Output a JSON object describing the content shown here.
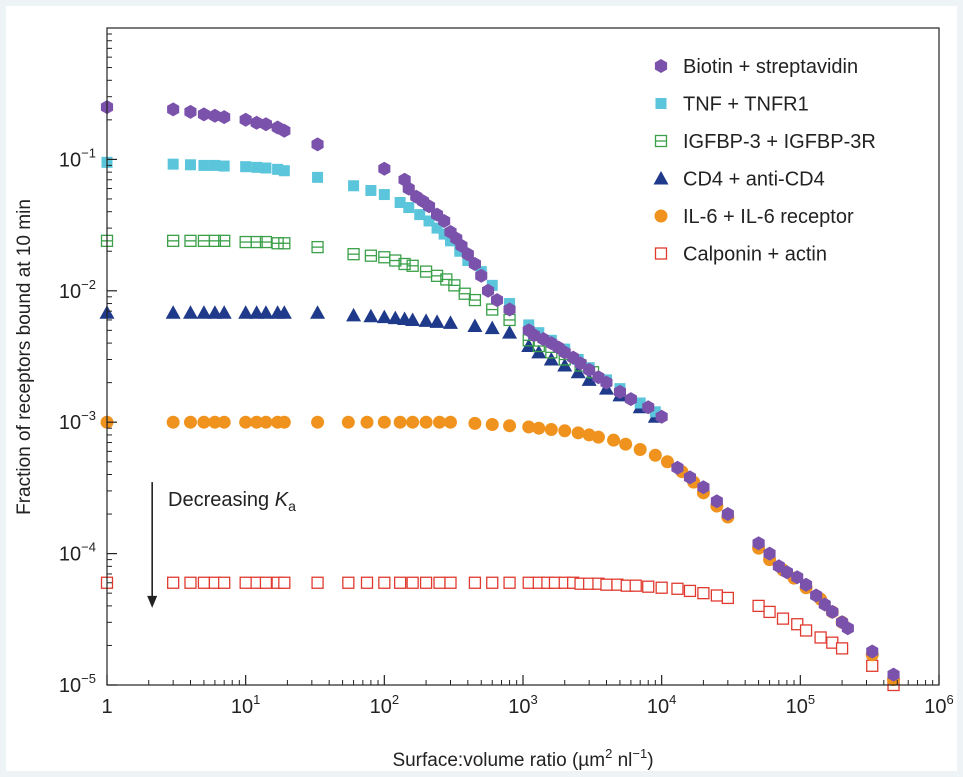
{
  "chart_data": {
    "type": "scatter",
    "xscale": "log",
    "yscale": "log",
    "xlim": [
      1,
      1000000
    ],
    "ylim": [
      1e-05,
      1
    ],
    "xlabel": {
      "main": "Surface:volume ratio (µm",
      "sup1": "2",
      "mid": " nl",
      "sup2": "−1",
      "end": ")"
    },
    "ylabel": "Fraction of receptors bound at 10 min",
    "x_ticks": [
      {
        "value": 1,
        "base": "1",
        "exp": ""
      },
      {
        "value": 10,
        "base": "10",
        "exp": "1"
      },
      {
        "value": 100,
        "base": "10",
        "exp": "2"
      },
      {
        "value": 1000,
        "base": "10",
        "exp": "3"
      },
      {
        "value": 10000,
        "base": "10",
        "exp": "4"
      },
      {
        "value": 100000,
        "base": "10",
        "exp": "5"
      },
      {
        "value": 1000000,
        "base": "10",
        "exp": "6"
      }
    ],
    "y_ticks": [
      {
        "value": 0.1,
        "base": "10",
        "exp": "−1"
      },
      {
        "value": 0.01,
        "base": "10",
        "exp": "−2"
      },
      {
        "value": 0.001,
        "base": "10",
        "exp": "−3"
      },
      {
        "value": 0.0001,
        "base": "10",
        "exp": "−4"
      },
      {
        "value": 1e-05,
        "base": "10",
        "exp": "−5"
      }
    ],
    "annotation": {
      "text": "Decreasing ",
      "italic": "K",
      "sub": "a",
      "arrow_from": 0.00035,
      "arrow_to": 4e-05,
      "x": 2.5
    },
    "legend_position": "top-right",
    "series": [
      {
        "name": "Biotin + streptavidin",
        "marker": "hexagon",
        "color": "#7b52ab",
        "points": [
          [
            1,
            0.25
          ],
          [
            3,
            0.24
          ],
          [
            4,
            0.23
          ],
          [
            5,
            0.22
          ],
          [
            6,
            0.215
          ],
          [
            7,
            0.21
          ],
          [
            10,
            0.2
          ],
          [
            12,
            0.19
          ],
          [
            14,
            0.185
          ],
          [
            17,
            0.175
          ],
          [
            19,
            0.165
          ],
          [
            33,
            0.13
          ],
          [
            100,
            0.085
          ],
          [
            140,
            0.07
          ],
          [
            150,
            0.06
          ],
          [
            170,
            0.052
          ],
          [
            190,
            0.048
          ],
          [
            210,
            0.044
          ],
          [
            240,
            0.038
          ],
          [
            270,
            0.034
          ],
          [
            300,
            0.028
          ],
          [
            330,
            0.025
          ],
          [
            360,
            0.022
          ],
          [
            400,
            0.019
          ],
          [
            450,
            0.016
          ],
          [
            500,
            0.013
          ],
          [
            560,
            0.01
          ],
          [
            650,
            0.0085
          ],
          [
            800,
            0.0072
          ],
          [
            1100,
            0.005
          ],
          [
            1200,
            0.0046
          ],
          [
            1400,
            0.0043
          ],
          [
            1600,
            0.004
          ],
          [
            1800,
            0.0037
          ],
          [
            2000,
            0.0034
          ],
          [
            2300,
            0.0031
          ],
          [
            2600,
            0.0028
          ],
          [
            3000,
            0.0025
          ],
          [
            3500,
            0.0022
          ],
          [
            4000,
            0.002
          ],
          [
            5000,
            0.0017
          ],
          [
            6000,
            0.0015
          ],
          [
            8000,
            0.0013
          ],
          [
            10000,
            0.0011
          ],
          [
            13000,
            0.00045
          ],
          [
            16000,
            0.00038
          ],
          [
            20000,
            0.00032
          ],
          [
            25000,
            0.00025
          ],
          [
            30000,
            0.0002
          ],
          [
            50000,
            0.00012
          ],
          [
            60000,
            0.0001
          ],
          [
            70000,
            8e-05
          ],
          [
            80000,
            7.2e-05
          ],
          [
            95000,
            6.6e-05
          ],
          [
            110000,
            5.8e-05
          ],
          [
            130000,
            4.8e-05
          ],
          [
            150000,
            4.1e-05
          ],
          [
            170000,
            3.6e-05
          ],
          [
            200000,
            3e-05
          ],
          [
            220000,
            2.7e-05
          ],
          [
            330000,
            1.8e-05
          ],
          [
            470000,
            1.2e-05
          ]
        ]
      },
      {
        "name": "TNF + TNFR1",
        "marker": "square",
        "color": "#5bc5db",
        "points": [
          [
            1,
            0.095
          ],
          [
            3,
            0.092
          ],
          [
            4,
            0.091
          ],
          [
            5,
            0.09
          ],
          [
            6,
            0.09
          ],
          [
            7,
            0.089
          ],
          [
            10,
            0.088
          ],
          [
            12,
            0.087
          ],
          [
            14,
            0.086
          ],
          [
            17,
            0.084
          ],
          [
            19,
            0.082
          ],
          [
            33,
            0.073
          ],
          [
            60,
            0.063
          ],
          [
            80,
            0.058
          ],
          [
            100,
            0.054
          ],
          [
            130,
            0.047
          ],
          [
            150,
            0.043
          ],
          [
            180,
            0.038
          ],
          [
            210,
            0.034
          ],
          [
            240,
            0.03
          ],
          [
            270,
            0.027
          ],
          [
            300,
            0.024
          ],
          [
            350,
            0.02
          ],
          [
            400,
            0.017
          ],
          [
            500,
            0.014
          ],
          [
            600,
            0.011
          ],
          [
            800,
            0.008
          ],
          [
            1100,
            0.0055
          ],
          [
            1300,
            0.0048
          ],
          [
            1600,
            0.0042
          ],
          [
            2000,
            0.0036
          ],
          [
            2500,
            0.003
          ],
          [
            3000,
            0.0026
          ],
          [
            4000,
            0.0021
          ],
          [
            5000,
            0.0018
          ],
          [
            7000,
            0.0014
          ],
          [
            9000,
            0.0012
          ]
        ]
      },
      {
        "name": "IGFBP-3 + IGFBP-3R",
        "marker": "square-open-bar",
        "color": "#3aa04a",
        "points": [
          [
            1,
            0.024
          ],
          [
            3,
            0.024
          ],
          [
            4,
            0.024
          ],
          [
            5,
            0.024
          ],
          [
            6,
            0.024
          ],
          [
            7,
            0.024
          ],
          [
            10,
            0.0235
          ],
          [
            12,
            0.0235
          ],
          [
            14,
            0.0235
          ],
          [
            17,
            0.023
          ],
          [
            19,
            0.023
          ],
          [
            33,
            0.0215
          ],
          [
            60,
            0.019
          ],
          [
            80,
            0.0185
          ],
          [
            100,
            0.018
          ],
          [
            120,
            0.017
          ],
          [
            140,
            0.016
          ],
          [
            160,
            0.0155
          ],
          [
            200,
            0.014
          ],
          [
            240,
            0.013
          ],
          [
            280,
            0.0122
          ],
          [
            320,
            0.011
          ],
          [
            380,
            0.0095
          ],
          [
            450,
            0.0085
          ],
          [
            600,
            0.0072
          ],
          [
            800,
            0.006
          ],
          [
            1100,
            0.0042
          ],
          [
            1300,
            0.0038
          ],
          [
            1600,
            0.0034
          ],
          [
            2000,
            0.003
          ],
          [
            2600,
            0.0027
          ],
          [
            3200,
            0.0024
          ]
        ]
      },
      {
        "name": "CD4 + anti-CD4",
        "marker": "triangle",
        "color": "#1f3a8a",
        "points": [
          [
            1,
            0.0068
          ],
          [
            3,
            0.0068
          ],
          [
            4,
            0.0068
          ],
          [
            5,
            0.0068
          ],
          [
            6,
            0.0068
          ],
          [
            7,
            0.0068
          ],
          [
            10,
            0.0068
          ],
          [
            12,
            0.0068
          ],
          [
            14,
            0.0068
          ],
          [
            17,
            0.0068
          ],
          [
            19,
            0.0068
          ],
          [
            33,
            0.0068
          ],
          [
            60,
            0.0065
          ],
          [
            80,
            0.0064
          ],
          [
            100,
            0.0063
          ],
          [
            120,
            0.0062
          ],
          [
            140,
            0.0061
          ],
          [
            160,
            0.006
          ],
          [
            200,
            0.0059
          ],
          [
            240,
            0.0058
          ],
          [
            300,
            0.0057
          ],
          [
            450,
            0.0054
          ],
          [
            600,
            0.0052
          ],
          [
            800,
            0.0048
          ],
          [
            1100,
            0.0038
          ],
          [
            1300,
            0.0034
          ],
          [
            1600,
            0.003
          ],
          [
            2000,
            0.0027
          ],
          [
            2500,
            0.0024
          ],
          [
            3000,
            0.0021
          ],
          [
            4000,
            0.0018
          ],
          [
            5000,
            0.0016
          ],
          [
            7000,
            0.0013
          ],
          [
            9000,
            0.0011
          ]
        ]
      },
      {
        "name": "IL-6 + IL-6 receptor",
        "marker": "circle",
        "color": "#f0931e",
        "points": [
          [
            1,
            0.001
          ],
          [
            3,
            0.001
          ],
          [
            4,
            0.001
          ],
          [
            5,
            0.001
          ],
          [
            6,
            0.001
          ],
          [
            7,
            0.001
          ],
          [
            10,
            0.001
          ],
          [
            12,
            0.001
          ],
          [
            14,
            0.001
          ],
          [
            17,
            0.001
          ],
          [
            19,
            0.001
          ],
          [
            33,
            0.001
          ],
          [
            55,
            0.001
          ],
          [
            75,
            0.001
          ],
          [
            100,
            0.001
          ],
          [
            130,
            0.001
          ],
          [
            160,
            0.001
          ],
          [
            200,
            0.001
          ],
          [
            250,
            0.001
          ],
          [
            300,
            0.001
          ],
          [
            450,
            0.00098
          ],
          [
            600,
            0.00096
          ],
          [
            800,
            0.00094
          ],
          [
            1100,
            0.00092
          ],
          [
            1300,
            0.0009
          ],
          [
            1600,
            0.00088
          ],
          [
            2000,
            0.00086
          ],
          [
            2500,
            0.00083
          ],
          [
            3000,
            0.0008
          ],
          [
            3500,
            0.00077
          ],
          [
            4500,
            0.00073
          ],
          [
            5500,
            0.00068
          ],
          [
            7000,
            0.00062
          ],
          [
            9000,
            0.00056
          ],
          [
            11000,
            0.0005
          ],
          [
            14000,
            0.00042
          ],
          [
            17000,
            0.00035
          ],
          [
            20000,
            0.00029
          ],
          [
            25000,
            0.00023
          ],
          [
            30000,
            0.00019
          ],
          [
            50000,
            0.00011
          ],
          [
            60000,
            9e-05
          ],
          [
            75000,
            7.5e-05
          ],
          [
            90000,
            6.5e-05
          ],
          [
            110000,
            5.5e-05
          ],
          [
            140000,
            4.5e-05
          ],
          [
            170000,
            3.6e-05
          ],
          [
            200000,
            3e-05
          ],
          [
            330000,
            1.7e-05
          ],
          [
            470000,
            1.1e-05
          ]
        ]
      },
      {
        "name": "Calponin + actin",
        "marker": "square-open",
        "color": "#e03a2f",
        "points": [
          [
            1,
            6e-05
          ],
          [
            3,
            6e-05
          ],
          [
            4,
            6e-05
          ],
          [
            5,
            6e-05
          ],
          [
            6,
            6e-05
          ],
          [
            7,
            6e-05
          ],
          [
            10,
            6e-05
          ],
          [
            12,
            6e-05
          ],
          [
            14,
            6e-05
          ],
          [
            17,
            6e-05
          ],
          [
            19,
            6e-05
          ],
          [
            33,
            6e-05
          ],
          [
            55,
            6e-05
          ],
          [
            75,
            6e-05
          ],
          [
            100,
            6e-05
          ],
          [
            130,
            6e-05
          ],
          [
            160,
            6e-05
          ],
          [
            200,
            6e-05
          ],
          [
            250,
            6e-05
          ],
          [
            300,
            6e-05
          ],
          [
            450,
            6e-05
          ],
          [
            600,
            6e-05
          ],
          [
            800,
            6e-05
          ],
          [
            1100,
            6e-05
          ],
          [
            1300,
            6e-05
          ],
          [
            1500,
            6e-05
          ],
          [
            1700,
            6e-05
          ],
          [
            2000,
            6e-05
          ],
          [
            2300,
            6e-05
          ],
          [
            2600,
            5.9e-05
          ],
          [
            3000,
            5.9e-05
          ],
          [
            3500,
            5.9e-05
          ],
          [
            4000,
            5.8e-05
          ],
          [
            4800,
            5.8e-05
          ],
          [
            5600,
            5.7e-05
          ],
          [
            6500,
            5.7e-05
          ],
          [
            8000,
            5.6e-05
          ],
          [
            10000,
            5.5e-05
          ],
          [
            13000,
            5.4e-05
          ],
          [
            16000,
            5.2e-05
          ],
          [
            20000,
            5e-05
          ],
          [
            25000,
            4.8e-05
          ],
          [
            30000,
            4.6e-05
          ],
          [
            50000,
            4e-05
          ],
          [
            60000,
            3.6e-05
          ],
          [
            75000,
            3.2e-05
          ],
          [
            95000,
            2.9e-05
          ],
          [
            110000,
            2.6e-05
          ],
          [
            140000,
            2.3e-05
          ],
          [
            170000,
            2.1e-05
          ],
          [
            200000,
            1.9e-05
          ],
          [
            330000,
            1.4e-05
          ],
          [
            470000,
            1e-05
          ]
        ]
      }
    ]
  }
}
